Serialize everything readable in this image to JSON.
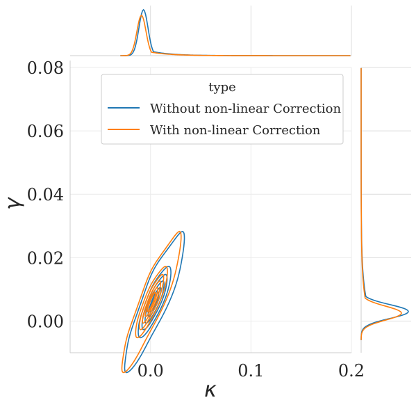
{
  "chart_data": {
    "type": "kde-joint",
    "xlabel": "κ",
    "ylabel": "γ",
    "xlim": [
      -0.08,
      0.2
    ],
    "ylim": [
      -0.01,
      0.08
    ],
    "x_ticks": [
      0.0,
      0.1,
      0.2
    ],
    "x_tick_labels": [
      "0.0",
      "0.1",
      "0.2"
    ],
    "y_ticks": [
      0.0,
      0.02,
      0.04,
      0.06,
      0.08
    ],
    "y_tick_labels": [
      "0.00",
      "0.02",
      "0.04",
      "0.06",
      "0.08"
    ],
    "grid": true,
    "legend": {
      "title": "type",
      "placement": "top-center",
      "entries": [
        "Without non-linear Correction",
        "With non-linear Correction"
      ]
    },
    "series": [
      {
        "name": "Without non-linear Correction",
        "color": "#1f77b4",
        "contour_center": [
          0.004,
          0.006
        ],
        "contour_levels": [
          {
            "half_width_x": 0.031,
            "half_width_y": 0.021
          },
          {
            "half_width_x": 0.02,
            "half_width_y": 0.011
          },
          {
            "half_width_x": 0.015,
            "half_width_y": 0.0085
          },
          {
            "half_width_x": 0.011,
            "half_width_y": 0.0065
          },
          {
            "half_width_x": 0.007,
            "half_width_y": 0.0045
          },
          {
            "half_width_x": 0.0045,
            "half_width_y": 0.003
          }
        ],
        "marginal_x_peak": -0.007,
        "marginal_y_peak": 0.003
      },
      {
        "name": "With non-linear Correction",
        "color": "#ff7f0e",
        "contour_center": [
          0.001,
          0.006
        ],
        "contour_levels": [
          {
            "half_width_x": 0.029,
            "half_width_y": 0.021
          },
          {
            "half_width_x": 0.018,
            "half_width_y": 0.011
          },
          {
            "half_width_x": 0.013,
            "half_width_y": 0.0085
          },
          {
            "half_width_x": 0.009,
            "half_width_y": 0.0065
          },
          {
            "half_width_x": 0.006,
            "half_width_y": 0.0045
          },
          {
            "half_width_x": 0.0035,
            "half_width_y": 0.003
          }
        ],
        "marginal_x_peak": -0.009,
        "marginal_y_peak": 0.0025
      }
    ]
  }
}
